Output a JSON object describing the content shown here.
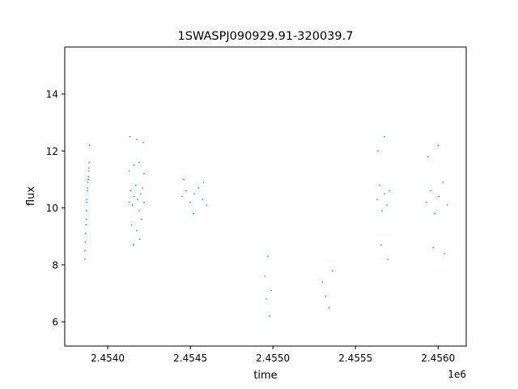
{
  "chart_data": {
    "type": "scatter",
    "title": "1SWASPJ090929.91-320039.7",
    "xlabel": "time",
    "ylabel": "flux",
    "x_offset_label": "1e6",
    "xlim": [
      2453740,
      2456170
    ],
    "ylim": [
      5.15,
      15.65
    ],
    "x_ticks": [
      2454000,
      2454500,
      2455000,
      2455500,
      2456000
    ],
    "x_tick_labels": [
      "2.4540",
      "2.4545",
      "2.4550",
      "2.4555",
      "2.4560"
    ],
    "y_ticks": [
      6,
      8,
      10,
      12,
      14
    ],
    "y_tick_labels": [
      "6",
      "8",
      "10",
      "12",
      "14"
    ],
    "grid": false,
    "marker_color": "#1f77b4",
    "series": [
      {
        "values_note_free": true,
        "x": [
          2453862,
          2453865,
          2453868,
          2453871,
          2453874,
          2453877,
          2453880,
          2453883,
          2453886,
          2453889,
          2453862,
          2453866,
          2453870,
          2453874,
          2453878,
          2453882,
          2453886,
          2453890,
          2454130,
          2454140,
          2454150,
          2454160,
          2454170,
          2454180,
          2454190,
          2454200,
          2454210,
          2454220,
          2454130,
          2454145,
          2454160,
          2454175,
          2454190,
          2454205,
          2454220,
          2454135,
          2454155,
          2454175,
          2454195,
          2454215,
          2454450,
          2454475,
          2454500,
          2454525,
          2454550,
          2454575,
          2454600,
          2454460,
          2454520,
          2454580,
          2454950,
          2454960,
          2454970,
          2454980,
          2454990,
          2455300,
          2455320,
          2455340,
          2455360,
          2455630,
          2455645,
          2455660,
          2455675,
          2455690,
          2455705,
          2455635,
          2455655,
          2455675,
          2455695,
          2455930,
          2455955,
          2455980,
          2456005,
          2456030,
          2456055,
          2455940,
          2455970,
          2456000,
          2456040
        ],
        "y": [
          8.2,
          8.8,
          9.4,
          9.9,
          10.3,
          10.6,
          10.9,
          11.1,
          11.3,
          11.6,
          8.5,
          9.1,
          9.6,
          10.2,
          10.7,
          11.0,
          11.4,
          12.2,
          10.2,
          10.6,
          10.1,
          10.4,
          10.8,
          10.3,
          9.9,
          10.5,
          10.7,
          10.2,
          11.3,
          9.4,
          11.5,
          9.2,
          11.6,
          9.6,
          11.2,
          12.5,
          8.7,
          12.4,
          8.9,
          12.3,
          10.4,
          10.6,
          10.2,
          10.5,
          10.7,
          10.3,
          10.1,
          11.0,
          9.8,
          10.9,
          7.6,
          6.8,
          8.3,
          6.2,
          7.1,
          7.4,
          6.9,
          6.5,
          7.8,
          10.3,
          10.8,
          9.9,
          10.5,
          10.1,
          10.6,
          12.0,
          8.7,
          12.5,
          8.2,
          10.2,
          10.6,
          9.8,
          10.4,
          10.9,
          10.1,
          11.8,
          8.6,
          12.2,
          8.4
        ]
      }
    ]
  }
}
